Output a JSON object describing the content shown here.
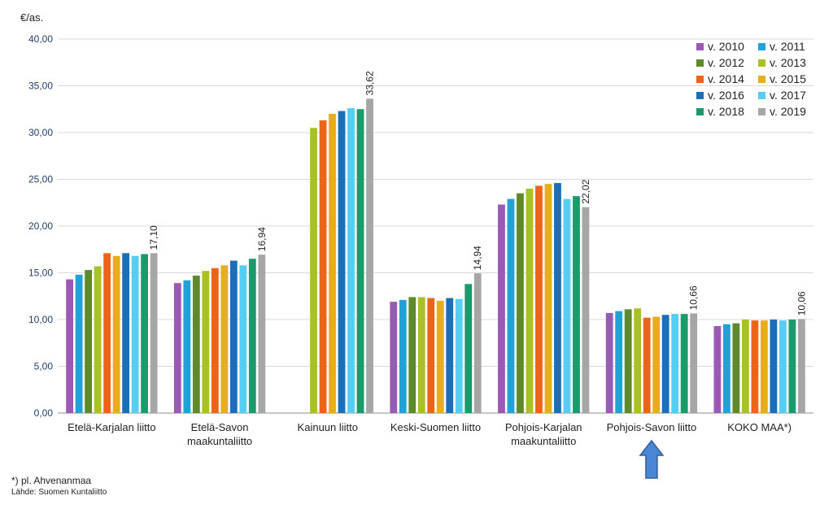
{
  "chart_data": {
    "type": "bar",
    "ylabel": "€/as.",
    "ylim": [
      0,
      40
    ],
    "yticks": [
      "0,00",
      "5,00",
      "10,00",
      "15,00",
      "20,00",
      "25,00",
      "30,00",
      "35,00",
      "40,00"
    ],
    "grid": true,
    "legend_position": "top-right",
    "categories": [
      [
        "Etelä-Karjalan liitto"
      ],
      [
        "Etelä-Savon",
        "maakuntaliitto"
      ],
      [
        "Kainuun liitto"
      ],
      [
        "Keski-Suomen liitto"
      ],
      [
        "Pohjois-Karjalan",
        "maakuntaliitto"
      ],
      [
        "Pohjois-Savon liitto"
      ],
      [
        "KOKO MAA*)"
      ]
    ],
    "series": [
      {
        "name": "v. 2010",
        "color": "#9b59b6",
        "values": [
          14.3,
          13.9,
          null,
          11.9,
          22.3,
          10.7,
          9.3
        ]
      },
      {
        "name": "v. 2011",
        "color": "#1fa3d6",
        "values": [
          14.8,
          14.2,
          null,
          12.1,
          22.9,
          10.9,
          9.5
        ]
      },
      {
        "name": "v. 2012",
        "color": "#5e8a2b",
        "values": [
          15.3,
          14.7,
          null,
          12.4,
          23.5,
          11.1,
          9.6
        ]
      },
      {
        "name": "v. 2013",
        "color": "#a9c123",
        "values": [
          15.7,
          15.2,
          30.5,
          12.4,
          24.0,
          11.2,
          10.0
        ]
      },
      {
        "name": "v. 2014",
        "color": "#ec6418",
        "values": [
          17.1,
          15.5,
          31.3,
          12.3,
          24.3,
          10.2,
          9.9
        ]
      },
      {
        "name": "v. 2015",
        "color": "#e8ad1d",
        "values": [
          16.8,
          15.8,
          32.0,
          12.0,
          24.5,
          10.3,
          9.9
        ]
      },
      {
        "name": "v. 2016",
        "color": "#1a6fb8",
        "values": [
          17.1,
          16.3,
          32.3,
          12.3,
          24.6,
          10.5,
          10.0
        ]
      },
      {
        "name": "v. 2017",
        "color": "#56cdf2",
        "values": [
          16.8,
          15.8,
          32.6,
          12.2,
          22.9,
          10.6,
          9.9
        ]
      },
      {
        "name": "v. 2018",
        "color": "#1b9a6b",
        "values": [
          17.0,
          16.5,
          32.5,
          13.8,
          23.2,
          10.6,
          10.0
        ]
      },
      {
        "name": "v. 2019",
        "color": "#a6a6a6",
        "values": [
          17.1,
          16.94,
          33.62,
          14.94,
          22.02,
          10.66,
          10.06
        ]
      }
    ],
    "data_labels": [
      "17,10",
      "16,94",
      "33,62",
      "14,94",
      "22,02",
      "10,66",
      "10,06"
    ],
    "highlight_category_index": 5,
    "highlight_arrow_color": "#4a86d4"
  },
  "footnote": "*) pl. Ahvenanmaa",
  "source": "Lähde: Suomen Kuntaliitto"
}
